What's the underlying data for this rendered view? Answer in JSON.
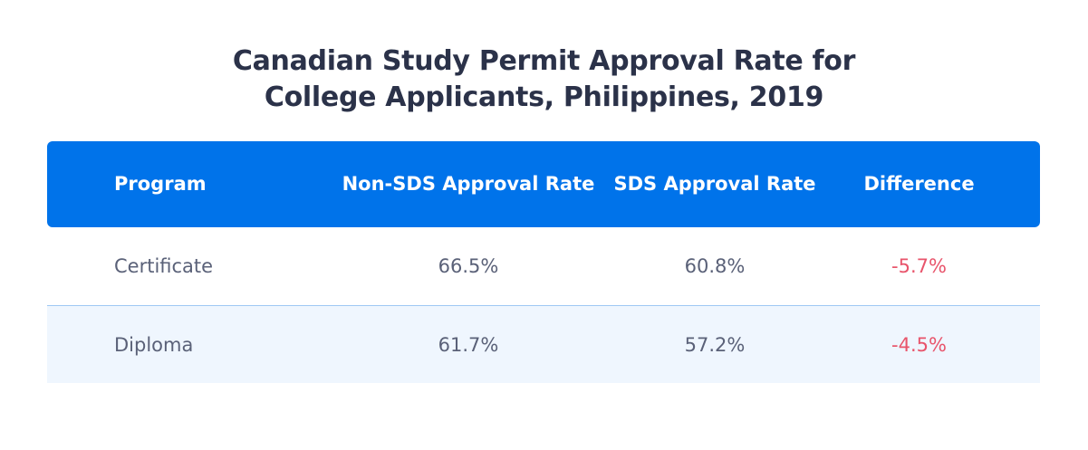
{
  "title_line1": "Canadian Study Permit Approval Rate for",
  "title_line2": "College Applicants, Philippines, 2019",
  "colors": {
    "header_bg": "#0073ea",
    "alt_row_bg": "#eff6fe",
    "negative": "#e8546b",
    "text": "#5a6178",
    "title": "#2b3249"
  },
  "table": {
    "headers": [
      "Program",
      "Non-SDS Approval Rate",
      "SDS Approval Rate",
      "Difference"
    ],
    "rows": [
      [
        "Certificate",
        "66.5%",
        "60.8%",
        "-5.7%"
      ],
      [
        "Diploma",
        "61.7%",
        "57.2%",
        "-4.5%"
      ]
    ]
  },
  "chart_data": {
    "type": "table",
    "title": "Canadian Study Permit Approval Rate for College Applicants, Philippines, 2019",
    "columns": [
      "Program",
      "Non-SDS Approval Rate",
      "SDS Approval Rate",
      "Difference"
    ],
    "rows": [
      {
        "Program": "Certificate",
        "Non-SDS Approval Rate": 66.5,
        "SDS Approval Rate": 60.8,
        "Difference": -5.7
      },
      {
        "Program": "Diploma",
        "Non-SDS Approval Rate": 61.7,
        "SDS Approval Rate": 57.2,
        "Difference": -4.5
      }
    ],
    "units": "%"
  }
}
